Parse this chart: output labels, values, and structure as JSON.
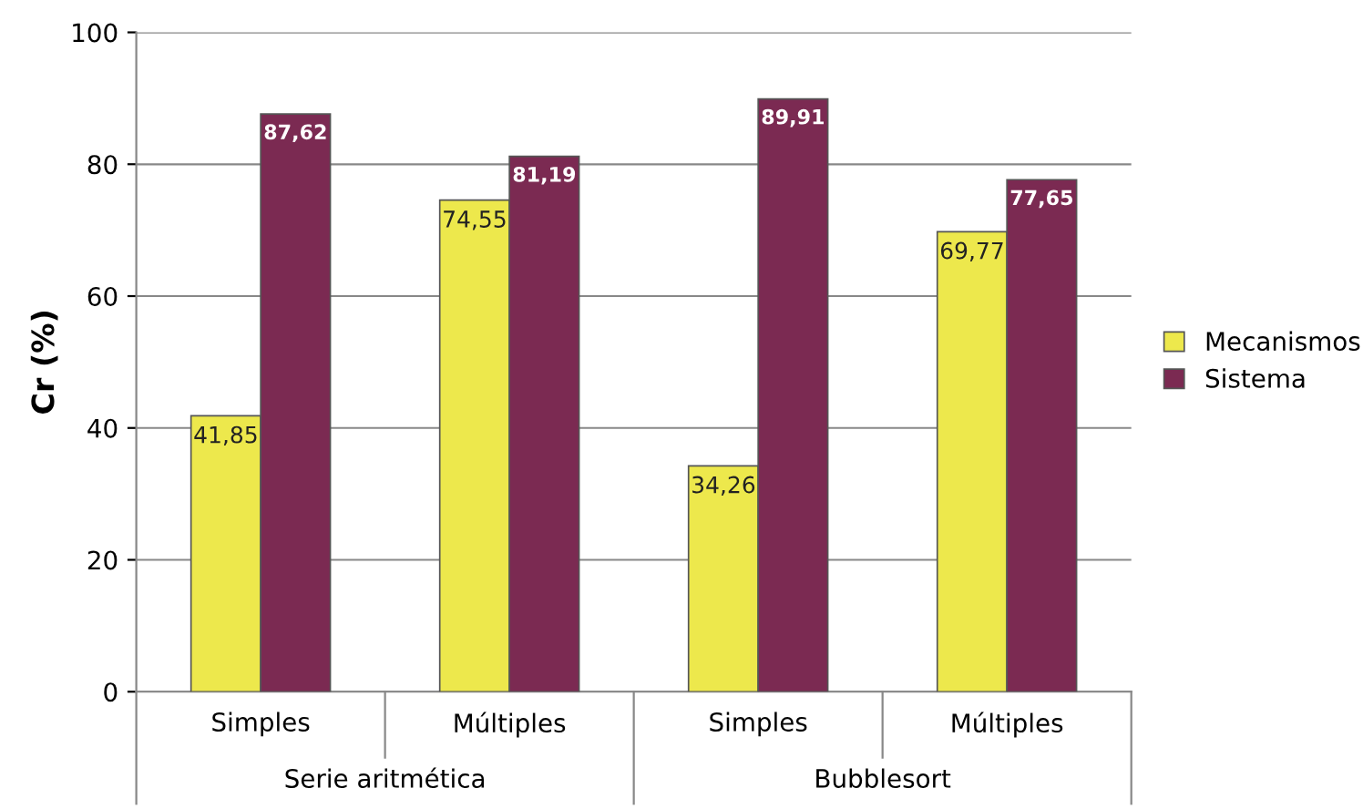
{
  "chart_data": {
    "type": "bar",
    "ylabel": "Cr (%)",
    "categories": [
      "Simples",
      "Múltiples",
      "Simples",
      "Múltiples"
    ],
    "annotations": [
      "Serie aritmética",
      "Bubblesort"
    ],
    "series": [
      {
        "name": "Mecanismos",
        "color": "#ede84c",
        "values": [
          41.85,
          74.55,
          34.26,
          69.77
        ],
        "value_labels": [
          "41,85",
          "74,55",
          "34,26",
          "69,77"
        ]
      },
      {
        "name": "Sistema",
        "color": "#7b2a52",
        "values": [
          87.62,
          81.19,
          89.91,
          77.65
        ],
        "value_labels": [
          "87,62",
          "81,19",
          "89,91",
          "77,65"
        ]
      }
    ],
    "ylim": [
      0,
      100
    ],
    "yticks": [
      0,
      20,
      40,
      60,
      80,
      100
    ],
    "grid": "y",
    "legend": "right"
  }
}
